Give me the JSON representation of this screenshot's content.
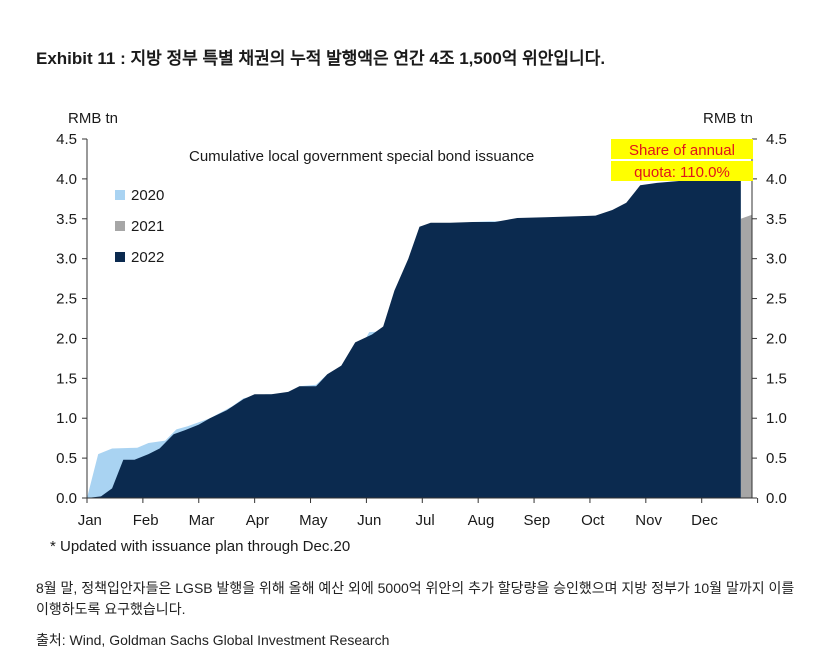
{
  "exhibit": {
    "title": "Exhibit 11 : 지방 정부 특별 채권의 누적 발행액은 연간 4조 1,500억 위안입니다."
  },
  "chart_data": {
    "type": "area",
    "title": "Cumulative local government special bond issuance",
    "y_unit_left": "RMB tn",
    "y_unit_right": "RMB tn",
    "ylim": [
      0,
      4.5
    ],
    "y_ticks": [
      "0.0",
      "0.5",
      "1.0",
      "1.5",
      "2.0",
      "2.5",
      "3.0",
      "3.5",
      "4.0",
      "4.5"
    ],
    "x_ticks": [
      "Jan",
      "Feb",
      "Mar",
      "Apr",
      "May",
      "Jun",
      "Jul",
      "Aug",
      "Sep",
      "Oct",
      "Nov",
      "Dec"
    ],
    "grid": false,
    "legend_position": "left",
    "footnote": "* Updated with issuance plan through Dec.20",
    "annotation": {
      "line1": "Share of annual",
      "line2": "quota: 110.0%",
      "text_color": "#e0151b",
      "background": "#ffff00"
    },
    "series": [
      {
        "name": "2020",
        "color": "#a9d3f2",
        "points": [
          [
            0.0,
            0.0
          ],
          [
            0.2,
            0.55
          ],
          [
            0.45,
            0.62
          ],
          [
            0.9,
            0.63
          ],
          [
            1.1,
            0.69
          ],
          [
            1.4,
            0.72
          ],
          [
            1.6,
            0.86
          ],
          [
            1.8,
            0.9
          ],
          [
            2.2,
            1.0
          ],
          [
            2.6,
            1.15
          ],
          [
            2.8,
            1.25
          ],
          [
            3.2,
            1.3
          ],
          [
            3.6,
            1.3
          ],
          [
            3.8,
            1.4
          ],
          [
            4.1,
            1.42
          ],
          [
            4.3,
            1.55
          ],
          [
            4.6,
            1.67
          ],
          [
            4.85,
            1.82
          ],
          [
            5.05,
            2.08
          ],
          [
            5.3,
            2.09
          ],
          [
            5.6,
            2.65
          ],
          [
            5.95,
            3.4
          ],
          [
            6.2,
            3.44
          ],
          [
            6.6,
            3.44
          ],
          [
            6.9,
            3.46
          ],
          [
            7.2,
            3.47
          ],
          [
            7.6,
            3.47
          ],
          [
            8.0,
            3.51
          ],
          [
            8.6,
            3.52
          ],
          [
            9.1,
            3.53
          ],
          [
            9.4,
            3.54
          ],
          [
            9.7,
            3.65
          ],
          [
            10.0,
            3.9
          ],
          [
            10.4,
            3.96
          ],
          [
            11.0,
            3.99
          ],
          [
            11.5,
            3.99
          ],
          [
            11.7,
            3.99
          ]
        ]
      },
      {
        "name": "2021",
        "color": "#a6a6a6",
        "points": [
          [
            11.7,
            3.5
          ],
          [
            11.9,
            3.55
          ]
        ]
      },
      {
        "name": "2022",
        "color": "#0b2a4f",
        "points": [
          [
            0.0,
            0.0
          ],
          [
            0.25,
            0.02
          ],
          [
            0.45,
            0.12
          ],
          [
            0.65,
            0.48
          ],
          [
            0.85,
            0.48
          ],
          [
            1.1,
            0.55
          ],
          [
            1.3,
            0.62
          ],
          [
            1.55,
            0.8
          ],
          [
            1.75,
            0.85
          ],
          [
            2.0,
            0.92
          ],
          [
            2.2,
            1.0
          ],
          [
            2.5,
            1.1
          ],
          [
            2.8,
            1.24
          ],
          [
            3.0,
            1.3
          ],
          [
            3.3,
            1.3
          ],
          [
            3.6,
            1.33
          ],
          [
            3.8,
            1.4
          ],
          [
            4.1,
            1.4
          ],
          [
            4.3,
            1.55
          ],
          [
            4.55,
            1.66
          ],
          [
            4.8,
            1.95
          ],
          [
            5.1,
            2.05
          ],
          [
            5.3,
            2.15
          ],
          [
            5.5,
            2.6
          ],
          [
            5.75,
            3.0
          ],
          [
            5.95,
            3.4
          ],
          [
            6.15,
            3.45
          ],
          [
            6.5,
            3.45
          ],
          [
            6.9,
            3.46
          ],
          [
            7.3,
            3.46
          ],
          [
            7.7,
            3.51
          ],
          [
            8.2,
            3.52
          ],
          [
            8.7,
            3.53
          ],
          [
            9.1,
            3.54
          ],
          [
            9.4,
            3.61
          ],
          [
            9.65,
            3.7
          ],
          [
            9.9,
            3.92
          ],
          [
            10.2,
            3.95
          ],
          [
            10.7,
            3.98
          ],
          [
            11.2,
            3.99
          ],
          [
            11.7,
            4.0
          ]
        ]
      }
    ]
  },
  "footer": {
    "note": "8월 말, 정책입안자들은 LGSB 발행을 위해 올해 예산 외에 5000억 위안의 추가 할당량을 승인했으며 지방 정부가 10월 말까지 이를 이행하도록 요구했습니다.",
    "source": "출처: Wind, Goldman Sachs Global Investment Research"
  }
}
